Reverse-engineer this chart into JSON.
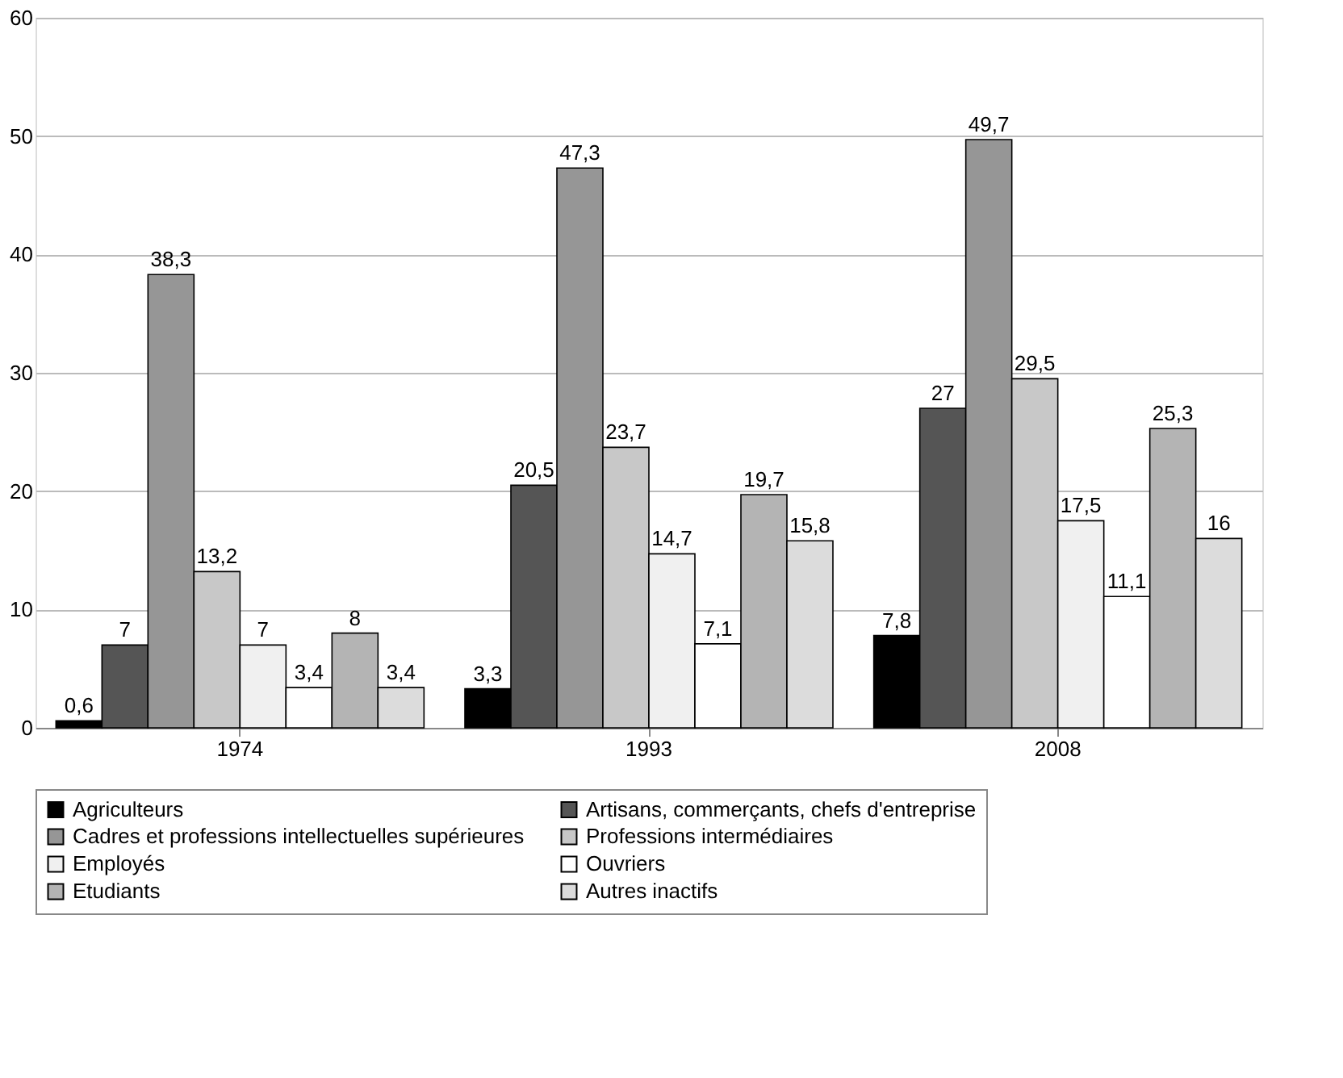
{
  "chart_data": {
    "type": "bar",
    "categories": [
      "1974",
      "1993",
      "2008"
    ],
    "series": [
      {
        "name": "Agriculteurs",
        "color": "#000000",
        "values": [
          0.6,
          3.3,
          7.8
        ],
        "value_labels": [
          "0,6",
          "3,3",
          "7,8"
        ]
      },
      {
        "name": "Artisans, commerçants, chefs d'entreprise",
        "color": "#555555",
        "values": [
          7,
          20.5,
          27
        ],
        "value_labels": [
          "7",
          "20,5",
          "27"
        ]
      },
      {
        "name": "Cadres et professions intellectuelles supérieures",
        "color": "#969696",
        "values": [
          38.3,
          47.3,
          49.7
        ],
        "value_labels": [
          "38,3",
          "47,3",
          "49,7"
        ]
      },
      {
        "name": "Professions intermédiaires",
        "color": "#c8c8c8",
        "values": [
          13.2,
          23.7,
          29.5
        ],
        "value_labels": [
          "13,2",
          "23,7",
          "29,5"
        ]
      },
      {
        "name": "Employés",
        "color": "#f0f0f0",
        "values": [
          7,
          14.7,
          17.5
        ],
        "value_labels": [
          "7",
          "14,7",
          "17,5"
        ]
      },
      {
        "name": "Ouvriers",
        "color": "#ffffff",
        "values": [
          3.4,
          7.1,
          11.1
        ],
        "value_labels": [
          "3,4",
          "7,1",
          "11,1"
        ]
      },
      {
        "name": "Etudiants",
        "color": "#b4b4b4",
        "values": [
          8,
          19.7,
          25.3
        ],
        "value_labels": [
          "8",
          "19,7",
          "25,3"
        ]
      },
      {
        "name": "Autres inactifs",
        "color": "#dcdcdc",
        "values": [
          3.4,
          15.8,
          16
        ],
        "value_labels": [
          "3,4",
          "15,8",
          "16"
        ]
      }
    ],
    "ylim": [
      0,
      60
    ],
    "yticks": [
      0,
      10,
      20,
      30,
      40,
      50,
      60
    ],
    "grid": "y",
    "legend": "bottom"
  }
}
